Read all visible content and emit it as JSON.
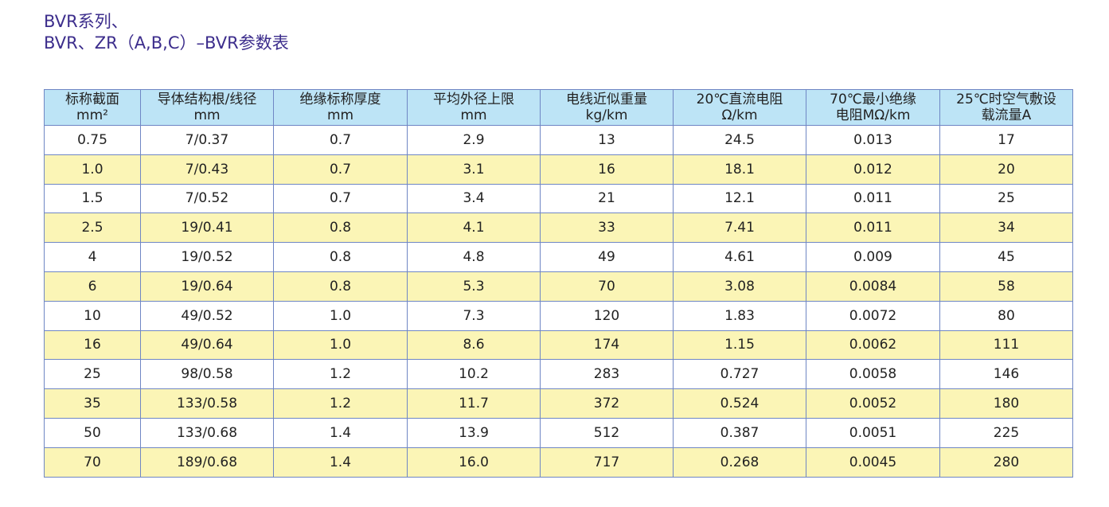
{
  "title": {
    "lines": [
      "BVR系列、",
      "BVR、ZR（A,B,C）–BVR参数表"
    ]
  },
  "table": {
    "header": [
      [
        "标称截面",
        "mm²"
      ],
      [
        "导体结构根/线径",
        "mm"
      ],
      [
        "绝缘标称厚度",
        "mm"
      ],
      [
        "平均外径上限",
        "mm"
      ],
      [
        "电线近似重量",
        "kg/km"
      ],
      [
        "20℃直流电阻",
        "Ω/km"
      ],
      [
        "70℃最小绝缘",
        "电阻MΩ/km"
      ],
      [
        "25℃时空气敷设",
        "载流量A"
      ]
    ],
    "rows": [
      [
        "0.75",
        "7/0.37",
        "0.7",
        "2.9",
        "13",
        "24.5",
        "0.013",
        "17"
      ],
      [
        "1.0",
        "7/0.43",
        "0.7",
        "3.1",
        "16",
        "18.1",
        "0.012",
        "20"
      ],
      [
        "1.5",
        "7/0.52",
        "0.7",
        "3.4",
        "21",
        "12.1",
        "0.011",
        "25"
      ],
      [
        "2.5",
        "19/0.41",
        "0.8",
        "4.1",
        "33",
        "7.41",
        "0.011",
        "34"
      ],
      [
        "4",
        "19/0.52",
        "0.8",
        "4.8",
        "49",
        "4.61",
        "0.009",
        "45"
      ],
      [
        "6",
        "19/0.64",
        "0.8",
        "5.3",
        "70",
        "3.08",
        "0.0084",
        "58"
      ],
      [
        "10",
        "49/0.52",
        "1.0",
        "7.3",
        "120",
        "1.83",
        "0.0072",
        "80"
      ],
      [
        "16",
        "49/0.64",
        "1.0",
        "8.6",
        "174",
        "1.15",
        "0.0062",
        "111"
      ],
      [
        "25",
        "98/0.58",
        "1.2",
        "10.2",
        "283",
        "0.727",
        "0.0058",
        "146"
      ],
      [
        "35",
        "133/0.58",
        "1.2",
        "11.7",
        "372",
        "0.524",
        "0.0052",
        "180"
      ],
      [
        "50",
        "133/0.68",
        "1.4",
        "13.9",
        "512",
        "0.387",
        "0.0051",
        "225"
      ],
      [
        "70",
        "189/0.68",
        "1.4",
        "16.0",
        "717",
        "0.268",
        "0.0045",
        "280"
      ]
    ]
  }
}
